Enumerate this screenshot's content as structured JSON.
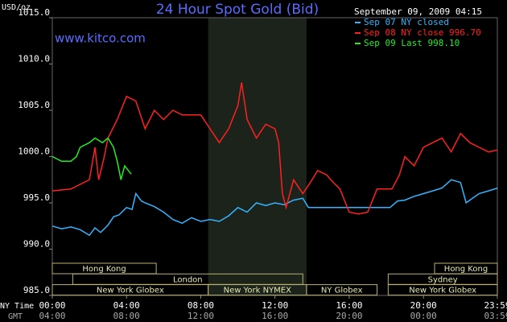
{
  "chart_data": {
    "type": "line",
    "title": "24 Hour Spot Gold (Bid)",
    "subtitle": "www.kitco.com",
    "timestamp": "September 09, 2009 04:15",
    "y_label": "USD/oz",
    "x_label": "NY Time",
    "x2_label": "GMT",
    "xlim": [
      0,
      23.983
    ],
    "xticks": [
      {
        "value": 0,
        "label": "00:00"
      },
      {
        "value": 4,
        "label": "04:00"
      },
      {
        "value": 8,
        "label": "08:00"
      },
      {
        "value": 12,
        "label": "12:00"
      },
      {
        "value": 16,
        "label": "16:00"
      },
      {
        "value": 20,
        "label": "20:00"
      },
      {
        "value": 23.983,
        "label": "23:59"
      }
    ],
    "x2ticks": [
      {
        "value": 0,
        "label": "04:00"
      },
      {
        "value": 4,
        "label": "08:00"
      },
      {
        "value": 8,
        "label": "12:00"
      },
      {
        "value": 12,
        "label": "16:00"
      },
      {
        "value": 16,
        "label": "20:00"
      },
      {
        "value": 20,
        "label": "00:00"
      },
      {
        "value": 23.983,
        "label": "03:59"
      }
    ],
    "ylim": [
      985,
      1015
    ],
    "yticks": [
      {
        "value": 985,
        "label": "985.0"
      },
      {
        "value": 990,
        "label": "990.0"
      },
      {
        "value": 995,
        "label": "995.0"
      },
      {
        "value": 1000,
        "label": "1000.0"
      },
      {
        "value": 1005,
        "label": "1005.0"
      },
      {
        "value": 1010,
        "label": "1010.0"
      },
      {
        "value": 1015,
        "label": "1015.0"
      }
    ],
    "series": [
      {
        "name": "Sep 07 NY closed",
        "color": "#33b5ff",
        "x": [
          0,
          0.5,
          1,
          1.5,
          2,
          2.3,
          2.6,
          3,
          3.3,
          3.6,
          4,
          4.3,
          4.5,
          4.8,
          5,
          5.5,
          6,
          6.5,
          7,
          7.5,
          8,
          8.5,
          9,
          9.5,
          10,
          10.5,
          11,
          11.5,
          12,
          12.5,
          13,
          13.5,
          13.8,
          15,
          16,
          17,
          18.2,
          18.6,
          19,
          19.5,
          20,
          20.5,
          21,
          21.5,
          22,
          22.3,
          22.5,
          23,
          23.5,
          24
        ],
        "values": [
          992.5,
          992.2,
          992.4,
          992.1,
          991.5,
          992.3,
          991.8,
          992.6,
          993.5,
          993.7,
          994.5,
          994.3,
          996.0,
          995.2,
          995.0,
          994.6,
          994.0,
          993.2,
          992.8,
          993.4,
          993.0,
          993.2,
          993.0,
          993.6,
          994.5,
          994.0,
          995.0,
          994.7,
          995.0,
          994.8,
          995.3,
          995.5,
          994.5,
          994.5,
          994.5,
          994.5,
          994.5,
          995.2,
          995.3,
          995.7,
          996.0,
          996.3,
          996.6,
          997.5,
          997.2,
          995.0,
          995.3,
          996.0,
          996.3,
          996.6
        ]
      },
      {
        "name": "Sep 08 NY close 996.70",
        "color": "#ff2020",
        "x": [
          0,
          1,
          1.5,
          2,
          2.3,
          2.5,
          2.8,
          3,
          3.5,
          4,
          4.5,
          5,
          5.5,
          6,
          6.5,
          7,
          7.5,
          8,
          8.5,
          9,
          9.5,
          10,
          10.2,
          10.5,
          11,
          11.5,
          12,
          12.2,
          12.4,
          12.6,
          13,
          13.5,
          14,
          14.3,
          14.8,
          15,
          15.5,
          16,
          16.5,
          17,
          17.5,
          18.3,
          18.7,
          19,
          19.5,
          20,
          20.5,
          21,
          21.5,
          22,
          22.5,
          23,
          23.5,
          24
        ],
        "values": [
          996.3,
          996.5,
          997.0,
          997.5,
          1001.0,
          997.5,
          1000.0,
          1002.0,
          1004.0,
          1006.5,
          1006.0,
          1003.0,
          1005.0,
          1004.0,
          1005.0,
          1004.5,
          1004.5,
          1004.5,
          1003.0,
          1001.5,
          1003.0,
          1005.5,
          1008.0,
          1004.0,
          1002.0,
          1003.5,
          1003.0,
          1001.5,
          996.0,
          994.5,
          997.5,
          996.0,
          997.5,
          998.5,
          998.0,
          997.5,
          996.5,
          994.0,
          993.8,
          994.0,
          996.5,
          996.5,
          998.0,
          1000.0,
          999.0,
          1001.0,
          1001.5,
          1002.0,
          1000.5,
          1002.5,
          1001.5,
          1001.0,
          1000.5,
          1000.7
        ]
      },
      {
        "name": "Sep 09 Last 998.10",
        "color": "#22ee22",
        "x": [
          0,
          0.5,
          1,
          1.3,
          1.5,
          2,
          2.3,
          2.7,
          3,
          3.3,
          3.5,
          3.7,
          3.9,
          4.1,
          4.25
        ],
        "values": [
          1000.0,
          999.5,
          999.5,
          1000.0,
          1001.0,
          1001.5,
          1002.0,
          1001.5,
          1002.0,
          1001.0,
          999.5,
          997.5,
          999.0,
          998.5,
          998.1
        ]
      }
    ],
    "session_rows": [
      [
        {
          "label": "Hong Kong",
          "start": 0,
          "end": 5.6
        },
        {
          "label": "Hong Kong",
          "start": 20.6,
          "end": 23.983
        }
      ],
      [
        {
          "label": "London",
          "start": 1.1,
          "end": 13.5
        },
        {
          "label": "Sydney",
          "start": 18.1,
          "end": 23.983
        }
      ],
      [
        {
          "label": "New York Globex",
          "start": 0,
          "end": 8.4
        },
        {
          "label": "New York NYMEX",
          "start": 8.4,
          "end": 13.7,
          "highlight": true
        },
        {
          "label": "NY Globex",
          "start": 13.7,
          "end": 17.5
        },
        {
          "label": "New York Globex",
          "start": 18.1,
          "end": 23.983
        }
      ]
    ]
  }
}
